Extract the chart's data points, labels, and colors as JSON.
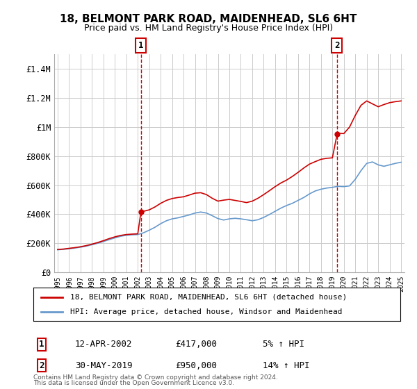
{
  "title": "18, BELMONT PARK ROAD, MAIDENHEAD, SL6 6HT",
  "subtitle": "Price paid vs. HM Land Registry's House Price Index (HPI)",
  "red_line_label": "18, BELMONT PARK ROAD, MAIDENHEAD, SL6 6HT (detached house)",
  "blue_line_label": "HPI: Average price, detached house, Windsor and Maidenhead",
  "annotation1": {
    "number": "1",
    "date": "12-APR-2002",
    "price": "£417,000",
    "hpi": "5% ↑ HPI",
    "year": 2002.28
  },
  "annotation2": {
    "number": "2",
    "date": "30-MAY-2019",
    "price": "£950,000",
    "hpi": "14% ↑ HPI",
    "year": 2019.41
  },
  "footer1": "Contains HM Land Registry data © Crown copyright and database right 2024.",
  "footer2": "This data is licensed under the Open Government Licence v3.0.",
  "ylim": [
    0,
    1500000
  ],
  "yticks": [
    0,
    200000,
    400000,
    600000,
    800000,
    1000000,
    1200000,
    1400000
  ],
  "ytick_labels": [
    "£0",
    "£200K",
    "£400K",
    "£600K",
    "£800K",
    "£1M",
    "£1.2M",
    "£1.4M"
  ],
  "red_color": "#cc0000",
  "blue_color": "#6699cc",
  "background_color": "#ffffff",
  "grid_color": "#cccccc",
  "hpi_x": [
    1995,
    1995.5,
    1996,
    1996.5,
    1997,
    1997.5,
    1998,
    1998.5,
    1999,
    1999.5,
    2000,
    2000.5,
    2001,
    2001.5,
    2002,
    2002.5,
    2003,
    2003.5,
    2004,
    2004.5,
    2005,
    2005.5,
    2006,
    2006.5,
    2007,
    2007.5,
    2008,
    2008.5,
    2009,
    2009.5,
    2010,
    2010.5,
    2011,
    2011.5,
    2012,
    2012.5,
    2013,
    2013.5,
    2014,
    2014.5,
    2015,
    2015.5,
    2016,
    2016.5,
    2017,
    2017.5,
    2018,
    2018.5,
    2019,
    2019.5,
    2020,
    2020.5,
    2021,
    2021.5,
    2022,
    2022.5,
    2023,
    2023.5,
    2024,
    2024.5,
    2025
  ],
  "hpi_y": [
    155000,
    158000,
    162000,
    167000,
    173000,
    180000,
    190000,
    200000,
    212000,
    225000,
    237000,
    248000,
    255000,
    258000,
    260000,
    272000,
    290000,
    310000,
    335000,
    355000,
    368000,
    375000,
    385000,
    395000,
    408000,
    415000,
    408000,
    390000,
    370000,
    360000,
    368000,
    372000,
    368000,
    362000,
    355000,
    362000,
    378000,
    398000,
    420000,
    442000,
    460000,
    475000,
    495000,
    515000,
    540000,
    560000,
    572000,
    580000,
    585000,
    592000,
    590000,
    595000,
    640000,
    700000,
    750000,
    760000,
    740000,
    730000,
    740000,
    750000,
    758000
  ],
  "red_x": [
    1995,
    1995.5,
    1996,
    1996.5,
    1997,
    1997.5,
    1998,
    1998.5,
    1999,
    1999.5,
    2000,
    2000.5,
    2001,
    2001.5,
    2002,
    2002.28,
    2002.5,
    2003,
    2003.5,
    2004,
    2004.5,
    2005,
    2005.5,
    2006,
    2006.5,
    2007,
    2007.5,
    2008,
    2008.5,
    2009,
    2009.5,
    2010,
    2010.5,
    2011,
    2011.5,
    2012,
    2012.5,
    2013,
    2013.5,
    2014,
    2014.5,
    2015,
    2015.5,
    2016,
    2016.5,
    2017,
    2017.5,
    2018,
    2018.5,
    2019,
    2019.41,
    2019.5,
    2020,
    2020.5,
    2021,
    2021.5,
    2022,
    2022.5,
    2023,
    2023.5,
    2024,
    2024.5,
    2025
  ],
  "red_y": [
    157000,
    160000,
    165000,
    170000,
    176000,
    184000,
    194000,
    205000,
    218000,
    232000,
    244000,
    254000,
    260000,
    263000,
    265000,
    417000,
    420000,
    430000,
    450000,
    475000,
    495000,
    508000,
    515000,
    520000,
    532000,
    545000,
    548000,
    535000,
    510000,
    490000,
    497000,
    502000,
    495000,
    488000,
    480000,
    490000,
    510000,
    535000,
    562000,
    590000,
    615000,
    635000,
    660000,
    688000,
    718000,
    745000,
    762000,
    778000,
    785000,
    788000,
    950000,
    958000,
    955000,
    1000000,
    1080000,
    1150000,
    1180000,
    1160000,
    1140000,
    1155000,
    1168000,
    1175000,
    1180000
  ]
}
